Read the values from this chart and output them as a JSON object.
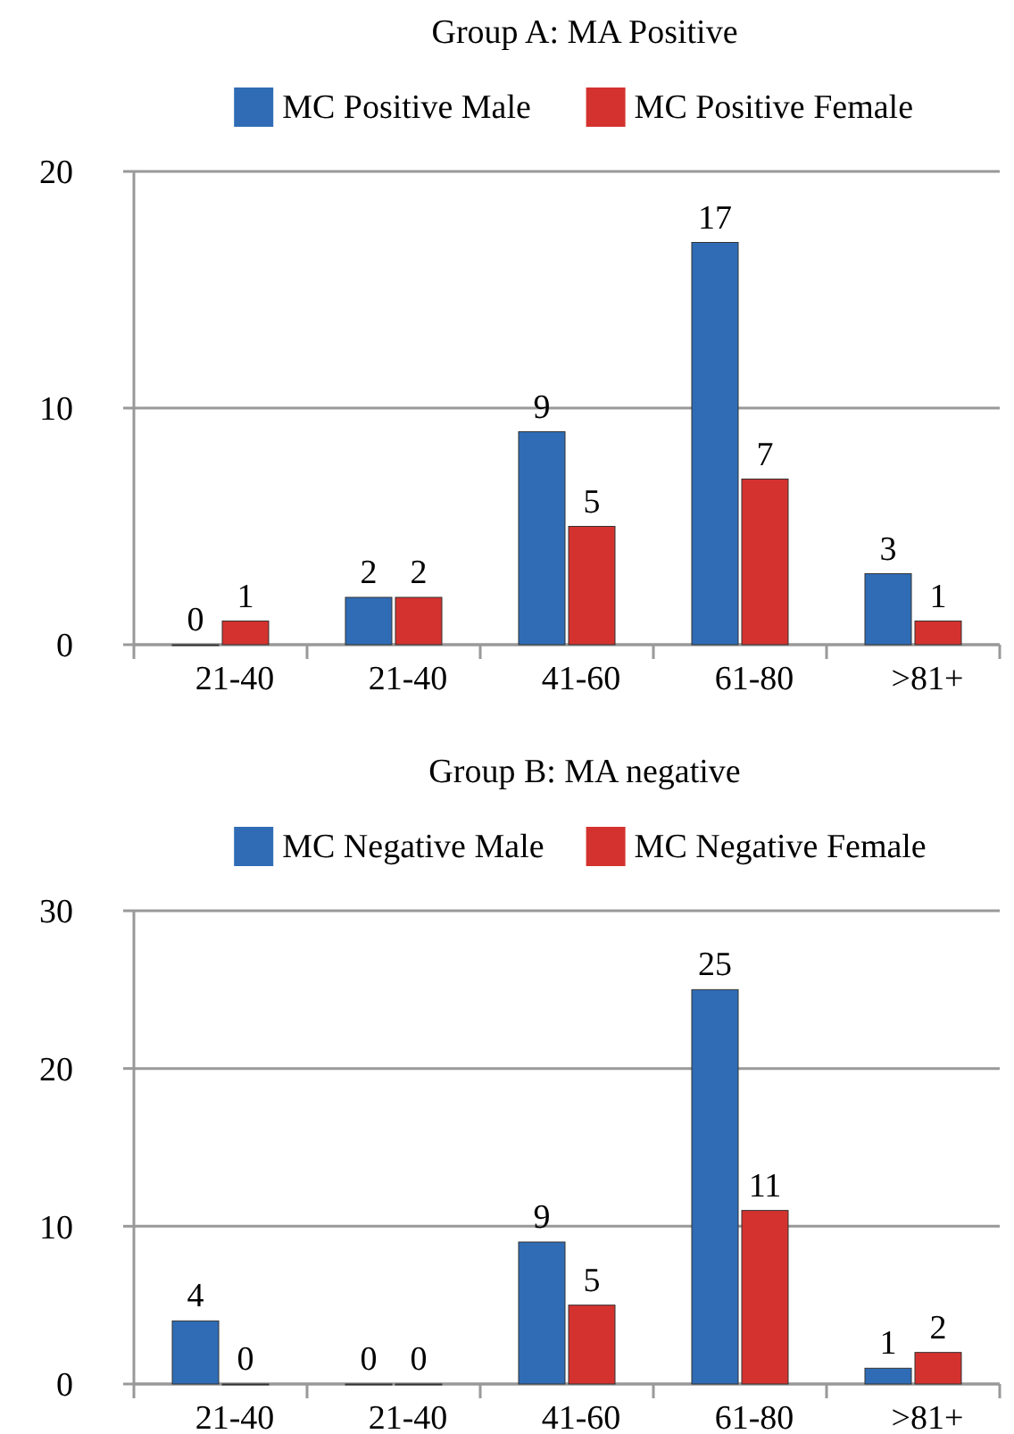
{
  "chart_data": [
    {
      "type": "bar",
      "title": "Group A: MA Positive",
      "categories": [
        "21-40",
        "21-40",
        "41-60",
        "61-80",
        ">81+"
      ],
      "series": [
        {
          "name": "MC Positive Male",
          "color": "#2f6cb5",
          "values": [
            0,
            2,
            9,
            17,
            3
          ]
        },
        {
          "name": "MC Positive Female",
          "color": "#d4322f",
          "values": [
            1,
            2,
            5,
            7,
            1
          ]
        }
      ],
      "ylim": [
        0,
        20
      ],
      "yticks": [
        0,
        10,
        20
      ],
      "grid": "y",
      "legend": "top",
      "data_labels": true
    },
    {
      "type": "bar",
      "title": "Group B: MA negative",
      "categories": [
        "21-40",
        "21-40",
        "41-60",
        "61-80",
        ">81+"
      ],
      "series": [
        {
          "name": "MC Negative Male",
          "color": "#2f6cb5",
          "values": [
            4,
            0,
            9,
            25,
            1
          ]
        },
        {
          "name": "MC Negative Female",
          "color": "#d4322f",
          "values": [
            0,
            0,
            5,
            11,
            2
          ]
        }
      ],
      "ylim": [
        0,
        30
      ],
      "yticks": [
        0,
        10,
        20,
        30
      ],
      "grid": "y",
      "legend": "top",
      "data_labels": true
    }
  ]
}
